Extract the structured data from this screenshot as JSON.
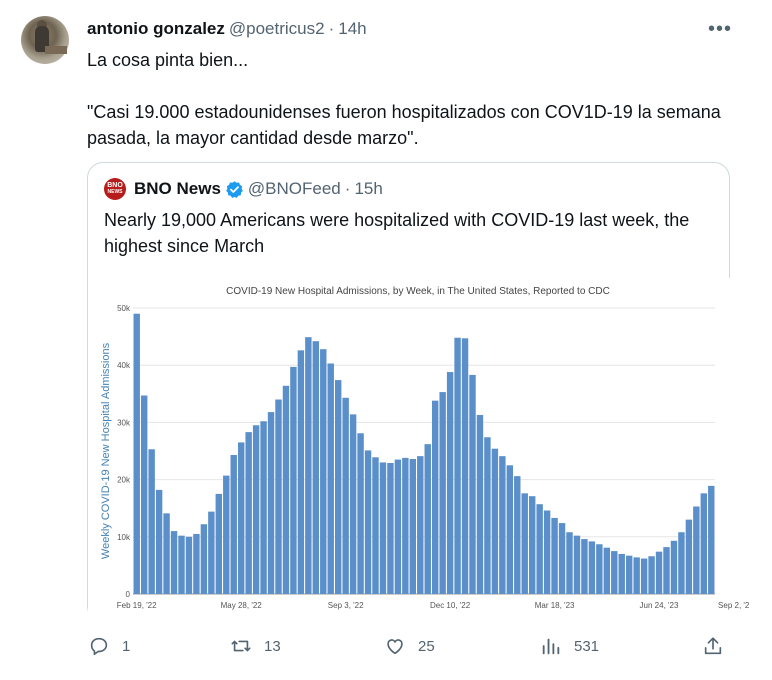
{
  "tweet": {
    "author_name": "antonio gonzalez",
    "author_handle": "@poetricus2",
    "separator": "·",
    "time": "14h",
    "more_label": "•••",
    "text_line1": "La cosa pinta bien...",
    "text_line2": "\"Casi 19.000 estadounidenses fueron hospitalizados con COV1D-19 la semana pasada, la mayor cantidad desde marzo\".",
    "avatar_icon": "user-avatar"
  },
  "quote": {
    "logo_top": "BNO",
    "logo_bottom": "NEWS",
    "author_name": "BNO News",
    "author_handle": "@BNOFeed",
    "separator": "·",
    "time": "15h",
    "verified_icon": "verified-badge-icon",
    "text": "Nearly 19,000 Americans were hospitalized with COVID-19 last week, the highest since March"
  },
  "actions": {
    "reply_count": "1",
    "retweet_count": "13",
    "like_count": "25",
    "views_count": "531",
    "icons": [
      "reply-icon",
      "retweet-icon",
      "like-icon",
      "views-icon",
      "share-icon"
    ]
  },
  "colors": {
    "bar": "#5b8fc9",
    "bar_stroke": "#4e7fb8",
    "ylabel": "#4682b4",
    "border": "#cfd9de",
    "muted": "#536471",
    "verified": "#1d9bf0",
    "logo": "#b71c1c"
  },
  "chart_data": {
    "type": "bar",
    "title": "COVID-19 New Hospital Admissions, by Week, in The United States, Reported to CDC",
    "xlabel": "",
    "ylabel": "Weekly COVID-19 New Hospital Admissions",
    "ylim": [
      0,
      50000
    ],
    "yticks": [
      0,
      10000,
      20000,
      30000,
      40000,
      50000
    ],
    "ytick_labels": [
      "0",
      "10k",
      "20k",
      "30k",
      "40k",
      "50k"
    ],
    "xtick_labels": [
      "Feb 19, '22",
      "May 28, '22",
      "Sep 3, '22",
      "Dec 10, '22",
      "Mar 18, '23",
      "Jun 24, '23",
      "Sep 2, '2"
    ],
    "xtick_indices": [
      0,
      14,
      28,
      42,
      56,
      70,
      80
    ],
    "grid": true,
    "values": [
      49000,
      34700,
      25300,
      18200,
      14100,
      11000,
      10200,
      10000,
      10500,
      12200,
      14400,
      17500,
      20700,
      24300,
      26500,
      28300,
      29500,
      30200,
      31800,
      34000,
      36400,
      39700,
      42600,
      44900,
      44200,
      42800,
      40300,
      37400,
      34300,
      31400,
      28100,
      25100,
      23900,
      23000,
      22900,
      23500,
      23800,
      23600,
      24100,
      26200,
      33800,
      35300,
      38800,
      44800,
      44700,
      38300,
      31300,
      27400,
      25400,
      24100,
      22500,
      20600,
      17600,
      17100,
      15700,
      14600,
      13300,
      12400,
      10800,
      10200,
      9600,
      9200,
      8700,
      8100,
      7500,
      7000,
      6700,
      6400,
      6200,
      6600,
      7400,
      8200,
      9300,
      10800,
      13000,
      15300,
      17600,
      18900
    ]
  }
}
